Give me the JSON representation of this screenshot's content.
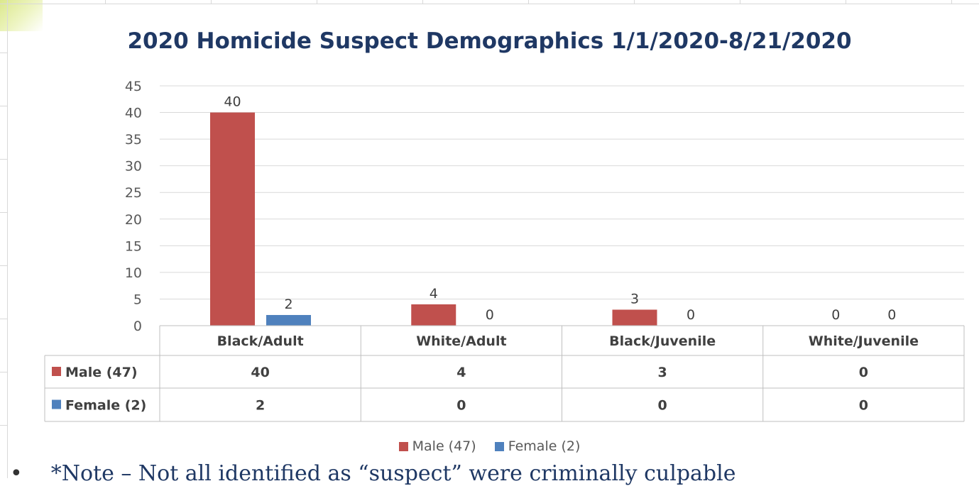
{
  "chart_data": {
    "type": "bar",
    "title": "2020 Homicide Suspect Demographics 1/1/2020-8/21/2020",
    "categories": [
      "Black/Adult",
      "White/Adult",
      "Black/Juvenile",
      "White/Juvenile"
    ],
    "series": [
      {
        "name": "Male (47)",
        "values": [
          40,
          4,
          3,
          0
        ],
        "color": "#c0504d"
      },
      {
        "name": "Female (2)",
        "values": [
          2,
          0,
          0,
          0
        ],
        "color": "#4f81bd"
      }
    ],
    "ylim": [
      0,
      45
    ],
    "yticks": [
      0,
      5,
      10,
      15,
      20,
      25,
      30,
      35,
      40,
      45
    ],
    "grid": true,
    "data_table": true,
    "legend_position": "bottom"
  },
  "footnote": {
    "bullet": "•",
    "text": "*Note – Not all identified as “suspect” were criminally culpable"
  }
}
